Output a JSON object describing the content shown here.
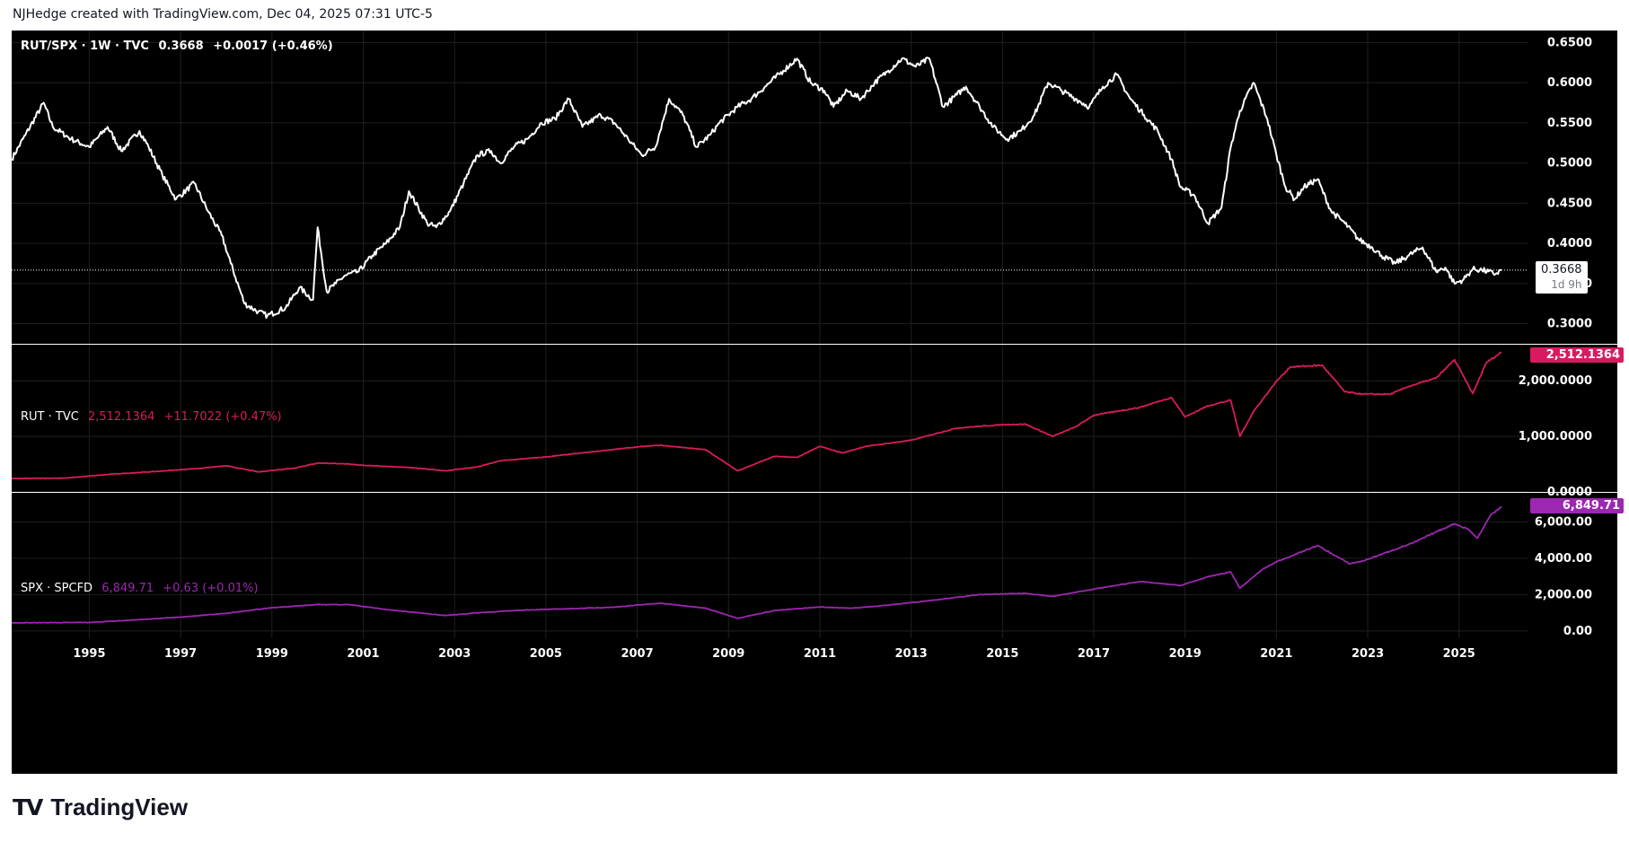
{
  "header": {
    "caption": "NJHedge created with TradingView.com, Dec 04, 2025 07:31 UTC-5"
  },
  "brand": {
    "wordmark": "TradingView",
    "mark": "TV"
  },
  "colors": {
    "main": "#ffffff",
    "rut": "#d81b60",
    "spx": "#9c27b0",
    "background": "#000000",
    "grid": "#1f1f1f"
  },
  "legends": {
    "main": {
      "symbol": "RUT/SPX · 1W · TVC",
      "last": "0.3668",
      "change": "+0.0017 (+0.46%)"
    },
    "rut": {
      "symbol": "RUT · TVC",
      "last": "2,512.1364",
      "change": "+11.7022 (+0.47%)"
    },
    "spx": {
      "symbol": "SPX · SPCFD",
      "last": "6,849.71",
      "change": "+0.63 (+0.01%)"
    }
  },
  "price_tags": {
    "main": {
      "value": "0.3668",
      "countdown": "1d 9h"
    },
    "rut": "2,512.1364",
    "spx": "6,849.71"
  },
  "chart_data": [
    {
      "type": "line",
      "title": "RUT/SPX · 1W · TVC",
      "ylim": [
        0.275,
        0.665
      ],
      "xlim": [
        1993.3,
        2026.5
      ],
      "yticks": [
        "0.3000",
        "0.3500",
        "0.4000",
        "0.4500",
        "0.5000",
        "0.5500",
        "0.6000",
        "0.6500"
      ],
      "ytick_values": [
        0.3,
        0.35,
        0.4,
        0.45,
        0.5,
        0.55,
        0.6,
        0.65
      ],
      "current_value": 0.3668,
      "x": [
        1993.3,
        1993.6,
        1994.0,
        1994.2,
        1994.6,
        1995.0,
        1995.4,
        1995.7,
        1996.1,
        1996.3,
        1996.6,
        1996.9,
        1997.3,
        1997.6,
        1997.9,
        1998.1,
        1998.4,
        1998.7,
        1998.9,
        1999.3,
        1999.6,
        1999.9,
        2000.0,
        2000.2,
        2000.4,
        2000.6,
        2000.9,
        2001.2,
        2001.5,
        2001.8,
        2002.0,
        2002.4,
        2002.6,
        2002.9,
        2003.2,
        2003.5,
        2003.8,
        2004.0,
        2004.3,
        2004.6,
        2004.9,
        2005.2,
        2005.5,
        2005.8,
        2006.2,
        2006.5,
        2006.8,
        2007.1,
        2007.4,
        2007.7,
        2008.0,
        2008.3,
        2008.6,
        2008.8,
        2009.2,
        2009.5,
        2009.8,
        2010.2,
        2010.5,
        2010.8,
        2011.1,
        2011.3,
        2011.6,
        2011.9,
        2012.2,
        2012.5,
        2012.8,
        2013.1,
        2013.4,
        2013.7,
        2014.0,
        2014.2,
        2014.5,
        2014.8,
        2015.1,
        2015.4,
        2015.7,
        2016.0,
        2016.3,
        2016.6,
        2016.9,
        2017.2,
        2017.5,
        2017.8,
        2018.1,
        2018.4,
        2018.7,
        2018.9,
        2019.2,
        2019.5,
        2019.8,
        2020.0,
        2020.2,
        2020.5,
        2020.8,
        2021.0,
        2021.2,
        2021.4,
        2021.6,
        2021.9,
        2022.2,
        2022.5,
        2022.8,
        2023.1,
        2023.3,
        2023.6,
        2023.9,
        2024.2,
        2024.5,
        2024.7,
        2024.9,
        2025.1,
        2025.3,
        2025.5,
        2025.8,
        2025.93
      ],
      "values": [
        0.505,
        0.535,
        0.575,
        0.545,
        0.53,
        0.52,
        0.545,
        0.515,
        0.54,
        0.52,
        0.485,
        0.455,
        0.475,
        0.44,
        0.41,
        0.375,
        0.325,
        0.315,
        0.31,
        0.32,
        0.345,
        0.33,
        0.42,
        0.34,
        0.35,
        0.36,
        0.365,
        0.385,
        0.4,
        0.42,
        0.465,
        0.425,
        0.42,
        0.44,
        0.475,
        0.51,
        0.515,
        0.5,
        0.52,
        0.53,
        0.55,
        0.555,
        0.58,
        0.545,
        0.56,
        0.55,
        0.53,
        0.51,
        0.52,
        0.58,
        0.56,
        0.52,
        0.535,
        0.55,
        0.57,
        0.58,
        0.595,
        0.615,
        0.63,
        0.6,
        0.59,
        0.57,
        0.59,
        0.58,
        0.6,
        0.615,
        0.63,
        0.62,
        0.63,
        0.57,
        0.585,
        0.595,
        0.57,
        0.545,
        0.53,
        0.54,
        0.56,
        0.6,
        0.59,
        0.58,
        0.57,
        0.595,
        0.61,
        0.58,
        0.56,
        0.54,
        0.505,
        0.47,
        0.46,
        0.425,
        0.445,
        0.52,
        0.565,
        0.6,
        0.555,
        0.51,
        0.47,
        0.455,
        0.47,
        0.48,
        0.44,
        0.425,
        0.405,
        0.395,
        0.385,
        0.375,
        0.385,
        0.395,
        0.365,
        0.37,
        0.35,
        0.355,
        0.368,
        0.3668,
        0.362,
        0.3668
      ]
    },
    {
      "type": "line",
      "title": "RUT · TVC",
      "ylim": [
        0,
        2650
      ],
      "yticks": [
        "0.0000",
        "1,000.0000",
        "2,000.0000"
      ],
      "ytick_values": [
        0,
        1000,
        2000
      ],
      "current_value": 2512.1364,
      "x": [
        1993.3,
        1994.5,
        1995.5,
        1996.5,
        1997.5,
        1998.0,
        1998.7,
        1999.5,
        2000.0,
        2000.5,
        2001.0,
        2002.0,
        2002.8,
        2003.5,
        2004.0,
        2005.0,
        2006.0,
        2007.0,
        2007.5,
        2008.5,
        2009.2,
        2010.0,
        2010.5,
        2011.0,
        2011.5,
        2012.0,
        2013.0,
        2014.0,
        2015.0,
        2015.5,
        2016.1,
        2016.6,
        2017.0,
        2018.0,
        2018.7,
        2019.0,
        2019.5,
        2020.0,
        2020.2,
        2020.5,
        2021.0,
        2021.3,
        2022.0,
        2022.5,
        2022.9,
        2023.5,
        2023.9,
        2024.5,
        2024.9,
        2025.3,
        2025.6,
        2025.93
      ],
      "values": [
        240,
        250,
        320,
        370,
        430,
        470,
        360,
        430,
        520,
        510,
        480,
        440,
        380,
        450,
        560,
        630,
        720,
        810,
        840,
        760,
        380,
        640,
        620,
        820,
        700,
        820,
        930,
        1150,
        1210,
        1220,
        1000,
        1170,
        1380,
        1520,
        1700,
        1350,
        1550,
        1650,
        1000,
        1450,
        1990,
        2250,
        2280,
        1800,
        1760,
        1760,
        1900,
        2050,
        2380,
        1770,
        2330,
        2512.1364
      ]
    },
    {
      "type": "line",
      "title": "SPX · SPCFD",
      "ylim": [
        -400,
        7600
      ],
      "yticks": [
        "0.00",
        "2,000.00",
        "4,000.00",
        "6,000.00"
      ],
      "ytick_values": [
        0,
        2000,
        4000,
        6000
      ],
      "current_value": 6849.71,
      "x": [
        1993.3,
        1995.0,
        1996.0,
        1997.0,
        1998.0,
        1999.0,
        2000.0,
        2000.7,
        2001.5,
        2002.8,
        2003.5,
        2004.5,
        2005.5,
        2006.5,
        2007.5,
        2008.5,
        2009.2,
        2010.0,
        2011.0,
        2011.7,
        2012.5,
        2013.5,
        2014.5,
        2015.5,
        2016.1,
        2017.0,
        2018.0,
        2018.9,
        2019.5,
        2020.0,
        2020.2,
        2020.7,
        2021.0,
        2021.9,
        2022.6,
        2022.9,
        2023.5,
        2024.0,
        2024.5,
        2024.9,
        2025.2,
        2025.4,
        2025.7,
        2025.93
      ],
      "values": [
        450,
        470,
        610,
        760,
        970,
        1280,
        1450,
        1450,
        1180,
        850,
        1000,
        1150,
        1220,
        1310,
        1530,
        1250,
        700,
        1120,
        1320,
        1250,
        1420,
        1700,
        2000,
        2070,
        1900,
        2300,
        2720,
        2500,
        2980,
        3250,
        2350,
        3400,
        3800,
        4700,
        3700,
        3850,
        4400,
        4850,
        5450,
        5900,
        5600,
        5100,
        6400,
        6849.71
      ]
    }
  ],
  "x_axis": {
    "labels": [
      "1995",
      "1997",
      "1999",
      "2001",
      "2003",
      "2005",
      "2007",
      "2009",
      "2011",
      "2013",
      "2015",
      "2017",
      "2019",
      "2021",
      "2023",
      "2025"
    ]
  }
}
